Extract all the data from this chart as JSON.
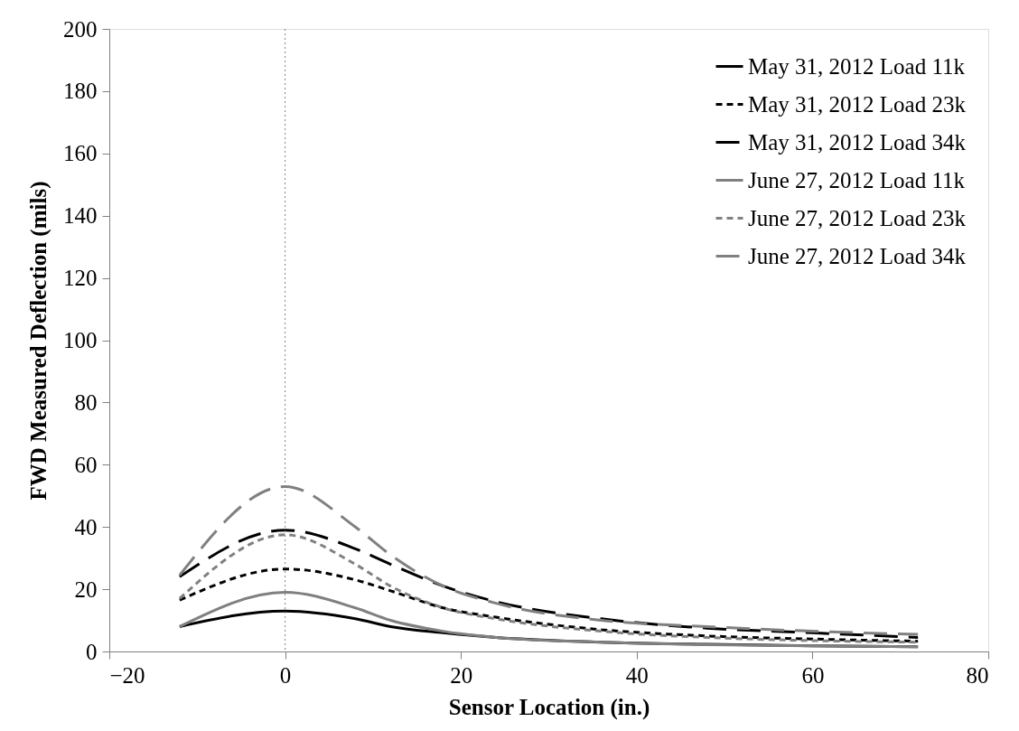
{
  "chart_data": {
    "type": "line",
    "xlabel": "Sensor Location (in.)",
    "ylabel": "FWD Measured Deflection (mils)",
    "x": [
      -12,
      0,
      8,
      12,
      18,
      24,
      36,
      48,
      60,
      72
    ],
    "xlim": [
      -20,
      80
    ],
    "xticks": [
      -20,
      0,
      20,
      40,
      60,
      80
    ],
    "ylim": [
      0,
      200
    ],
    "yticks": [
      0,
      20,
      40,
      60,
      80,
      100,
      120,
      140,
      160,
      180,
      200
    ],
    "grid": false,
    "legend": "top right",
    "ref_lines": [
      {
        "axis": "x",
        "value": 0,
        "color": "#808080",
        "line_style": "dotted"
      }
    ],
    "series": [
      {
        "name": "May 31, 2012 Load 11k",
        "color": "#000000",
        "line_style": "solid",
        "values": [
          8,
          13,
          10.5,
          8,
          6,
          4.5,
          3,
          2.3,
          1.8,
          1.5
        ]
      },
      {
        "name": "May 31, 2012 Load 23k",
        "color": "#000000",
        "line_style": "dashed",
        "values": [
          16.5,
          26.5,
          23,
          19.5,
          14,
          11,
          7,
          5,
          4,
          3.3
        ]
      },
      {
        "name": "May 31, 2012 Load 34k",
        "color": "#000000",
        "line_style": "longdash",
        "values": [
          24,
          39,
          33,
          28,
          21,
          16,
          10.5,
          7.5,
          6,
          4.5
        ]
      },
      {
        "name": "June 27, 2012 Load 11k",
        "color": "#808080",
        "line_style": "solid",
        "values": [
          8,
          19,
          14,
          10,
          6.5,
          4.5,
          3,
          2.2,
          1.8,
          1.5
        ]
      },
      {
        "name": "June 27, 2012 Load 23k",
        "color": "#808080",
        "line_style": "dashed",
        "values": [
          17,
          37.5,
          28,
          21,
          14,
          10.5,
          6.5,
          4.5,
          3.5,
          3
        ]
      },
      {
        "name": "June 27, 2012 Load 34k",
        "color": "#808080",
        "line_style": "longdash",
        "values": [
          24.5,
          53,
          40,
          31,
          21,
          15.5,
          10,
          8,
          6.5,
          5.5
        ]
      }
    ]
  }
}
